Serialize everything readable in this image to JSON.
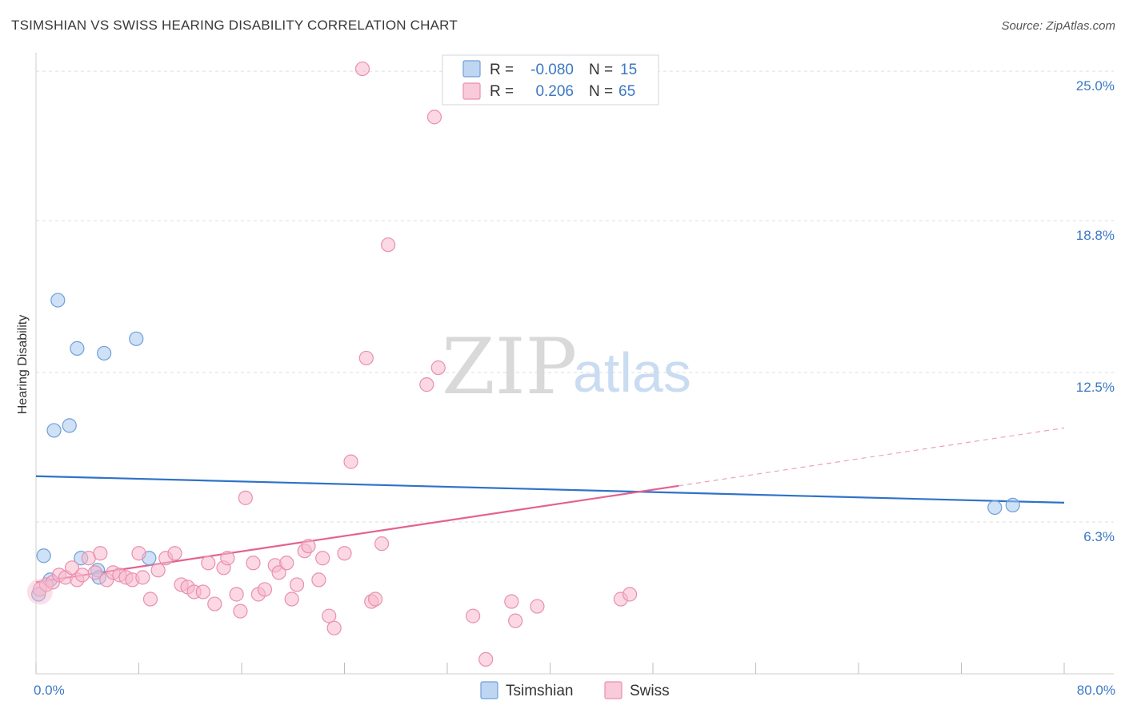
{
  "header": {
    "title": "TSIMSHIAN VS SWISS HEARING DISABILITY CORRELATION CHART",
    "source": "Source: ZipAtlas.com"
  },
  "watermark": {
    "zip": "ZIP",
    "atlas": "atlas"
  },
  "chart_data": {
    "type": "scatter",
    "title": "TSIMSHIAN VS SWISS HEARING DISABILITY CORRELATION CHART",
    "xlabel": "",
    "ylabel": "Hearing Disability",
    "xlim": [
      0,
      80
    ],
    "ylim": [
      0,
      25.5
    ],
    "x_tick_labels": [
      {
        "value": 0,
        "label": "0.0%"
      },
      {
        "value": 80,
        "label": "80.0%"
      }
    ],
    "y_tick_labels": [
      {
        "value": 6.3,
        "label": "6.3%"
      },
      {
        "value": 12.5,
        "label": "12.5%"
      },
      {
        "value": 18.8,
        "label": "18.8%"
      },
      {
        "value": 25.0,
        "label": "25.0%"
      }
    ],
    "grid": true,
    "legend_position": "top-center",
    "series": [
      {
        "name": "Tsimshian",
        "color": "#a8c8ee",
        "edge": "#6f9fd8",
        "line_color": "#2f72c9",
        "R": "-0.080",
        "N": "15",
        "trend": {
          "x1": 0,
          "y1": 8.2,
          "x2": 80,
          "y2": 7.1
        },
        "points": [
          [
            0.2,
            3.3
          ],
          [
            0.6,
            4.9
          ],
          [
            1.1,
            3.9
          ],
          [
            1.4,
            10.1
          ],
          [
            1.7,
            15.5
          ],
          [
            2.6,
            10.3
          ],
          [
            3.2,
            13.5
          ],
          [
            3.5,
            4.8
          ],
          [
            4.8,
            4.3
          ],
          [
            4.9,
            4.0
          ],
          [
            5.3,
            13.3
          ],
          [
            7.8,
            13.9
          ],
          [
            8.8,
            4.8
          ],
          [
            74.6,
            6.9
          ],
          [
            76.0,
            7.0
          ]
        ]
      },
      {
        "name": "Swiss",
        "color": "#f7b8cc",
        "edge": "#e890ad",
        "line_color": "#e3628f",
        "R": "0.206",
        "N": "65",
        "trend": {
          "x1": 0,
          "y1": 3.8,
          "x2": 50,
          "y2": 7.8
        },
        "trend_dashed": {
          "x1": 50,
          "y1": 7.8,
          "x2": 80,
          "y2": 10.2
        },
        "points": [
          [
            0.3,
            3.5
          ],
          [
            0.8,
            3.7
          ],
          [
            1.3,
            3.8
          ],
          [
            1.8,
            4.1
          ],
          [
            2.3,
            4.0
          ],
          [
            2.8,
            4.4
          ],
          [
            3.2,
            3.9
          ],
          [
            3.6,
            4.1
          ],
          [
            4.1,
            4.8
          ],
          [
            4.6,
            4.2
          ],
          [
            5.0,
            5.0
          ],
          [
            5.5,
            3.9
          ],
          [
            6.0,
            4.2
          ],
          [
            6.5,
            4.1
          ],
          [
            7.0,
            4.0
          ],
          [
            7.5,
            3.9
          ],
          [
            8.0,
            5.0
          ],
          [
            8.3,
            4.0
          ],
          [
            8.9,
            3.1
          ],
          [
            9.5,
            4.3
          ],
          [
            10.1,
            4.8
          ],
          [
            10.8,
            5.0
          ],
          [
            11.3,
            3.7
          ],
          [
            11.8,
            3.6
          ],
          [
            12.3,
            3.4
          ],
          [
            13.0,
            3.4
          ],
          [
            13.4,
            4.6
          ],
          [
            13.9,
            2.9
          ],
          [
            14.6,
            4.4
          ],
          [
            14.9,
            4.8
          ],
          [
            15.6,
            3.3
          ],
          [
            15.9,
            2.6
          ],
          [
            16.3,
            7.3
          ],
          [
            16.9,
            4.6
          ],
          [
            17.3,
            3.3
          ],
          [
            17.8,
            3.5
          ],
          [
            18.6,
            4.5
          ],
          [
            18.9,
            4.2
          ],
          [
            19.5,
            4.6
          ],
          [
            19.9,
            3.1
          ],
          [
            20.3,
            3.7
          ],
          [
            20.9,
            5.1
          ],
          [
            21.2,
            5.3
          ],
          [
            22.0,
            3.9
          ],
          [
            22.3,
            4.8
          ],
          [
            22.8,
            2.4
          ],
          [
            23.2,
            1.9
          ],
          [
            24.0,
            5.0
          ],
          [
            24.5,
            8.8
          ],
          [
            25.4,
            25.1
          ],
          [
            25.7,
            13.1
          ],
          [
            26.1,
            3.0
          ],
          [
            26.4,
            3.1
          ],
          [
            26.9,
            5.4
          ],
          [
            27.4,
            17.8
          ],
          [
            30.4,
            12.0
          ],
          [
            31.0,
            23.1
          ],
          [
            31.3,
            12.7
          ],
          [
            34.0,
            2.4
          ],
          [
            35.0,
            0.6
          ],
          [
            37.0,
            3.0
          ],
          [
            37.3,
            2.2
          ],
          [
            39.0,
            2.8
          ],
          [
            45.5,
            3.1
          ],
          [
            46.2,
            3.3
          ]
        ]
      }
    ]
  },
  "legend": {
    "r_label": "R =",
    "n_label": "N ="
  }
}
